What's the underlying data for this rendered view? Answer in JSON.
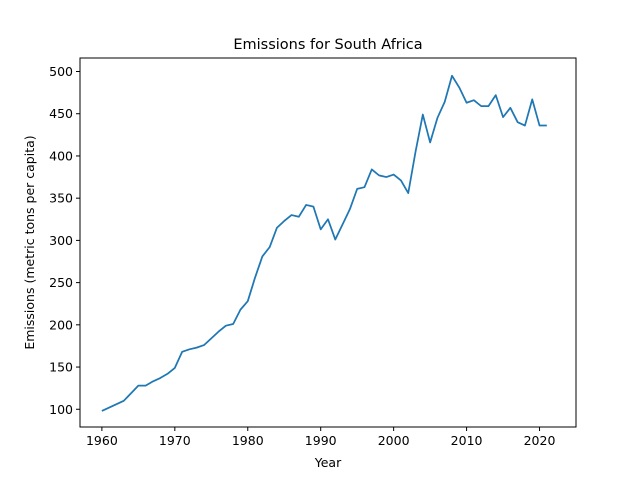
{
  "chart_data": {
    "type": "line",
    "title": "Emissions for South Africa",
    "xlabel": "Year",
    "ylabel": "Emissions (metric tons per capita)",
    "xlim": [
      1957,
      2025
    ],
    "ylim": [
      79,
      516
    ],
    "xticks": [
      1960,
      1970,
      1980,
      1990,
      2000,
      2010,
      2020
    ],
    "yticks": [
      100,
      150,
      200,
      250,
      300,
      350,
      400,
      450,
      500
    ],
    "grid": false,
    "legend": "none",
    "color": "#1f77b4",
    "series": [
      {
        "x": [
          1960,
          1961,
          1962,
          1963,
          1964,
          1965,
          1966,
          1967,
          1968,
          1969,
          1970,
          1971,
          1972,
          1973,
          1974,
          1975,
          1976,
          1977,
          1978,
          1979,
          1980,
          1981,
          1982,
          1983,
          1984,
          1985,
          1986,
          1987,
          1988,
          1989,
          1990,
          1991,
          1992,
          1993,
          1994,
          1995,
          1996,
          1997,
          1998,
          1999,
          2000,
          2001,
          2002,
          2003,
          2004,
          2005,
          2006,
          2007,
          2008,
          2009,
          2010,
          2011,
          2012,
          2013,
          2014,
          2015,
          2016,
          2017,
          2018,
          2019,
          2020,
          2021
        ],
        "values": [
          98,
          102,
          106,
          110,
          119,
          128,
          128,
          133,
          137,
          142,
          149,
          168,
          171,
          173,
          176,
          184,
          192,
          199,
          201,
          218,
          228,
          256,
          281,
          292,
          315,
          323,
          330,
          328,
          342,
          340,
          313,
          325,
          301,
          319,
          337,
          361,
          363,
          384,
          377,
          375,
          378,
          371,
          356,
          405,
          449,
          416,
          445,
          464,
          495,
          481,
          463,
          466,
          459,
          459,
          472,
          446,
          457,
          440,
          436,
          467,
          436,
          436
        ]
      }
    ]
  }
}
